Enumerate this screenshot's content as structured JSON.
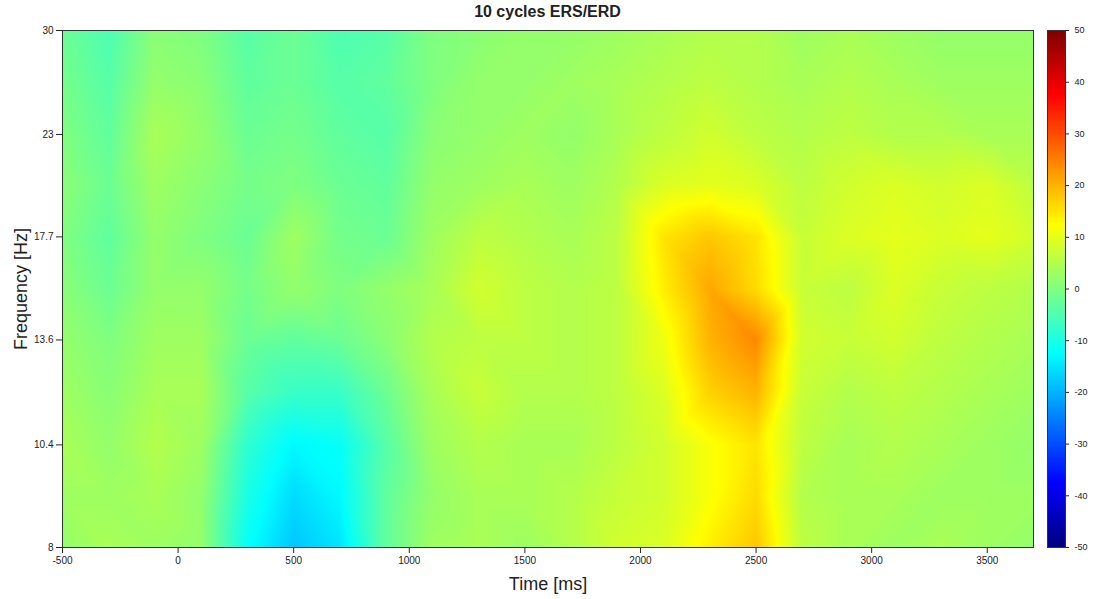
{
  "chart_data": {
    "type": "heatmap",
    "title": "10 cycles ERS/ERD",
    "x_label": "Time [ms]",
    "y_label": "Frequency [Hz]",
    "log": "y",
    "grid": false,
    "color": "jet",
    "xlim": [
      -500,
      3700
    ],
    "xticks": [
      -500,
      0,
      500,
      1000,
      1500,
      2000,
      2500,
      3000,
      3500
    ],
    "ylim": [
      8,
      30
    ],
    "yticks": [
      8,
      10.4,
      13.6,
      17.7,
      23,
      30
    ],
    "x": [
      -500,
      -300,
      -100,
      100,
      300,
      500,
      700,
      900,
      1100,
      1300,
      1500,
      1700,
      1900,
      2100,
      2300,
      2500,
      2700,
      2900,
      3100,
      3300,
      3500,
      3700
    ],
    "y": [
      8,
      9.1,
      10.4,
      11.9,
      13.6,
      15.5,
      17.7,
      20.2,
      23,
      26.3,
      30
    ],
    "values": [
      [
        2,
        4,
        3,
        2,
        -12,
        -18,
        -15,
        -3,
        3,
        4,
        3,
        5,
        8,
        9,
        14,
        18,
        6,
        4,
        3,
        4,
        3,
        2
      ],
      [
        3,
        3,
        4,
        2,
        -10,
        -16,
        -13,
        -3,
        2,
        4,
        4,
        5,
        7,
        8,
        12,
        16,
        5,
        4,
        4,
        3,
        3,
        3
      ],
      [
        4,
        2,
        5,
        3,
        -8,
        -13,
        -12,
        -4,
        3,
        5,
        4,
        4,
        6,
        8,
        12,
        15,
        6,
        4,
        5,
        4,
        3,
        2
      ],
      [
        3,
        1,
        4,
        4,
        -4,
        -7,
        -7,
        -2,
        4,
        7,
        5,
        5,
        6,
        9,
        17,
        20,
        7,
        5,
        6,
        5,
        4,
        3
      ],
      [
        2,
        0,
        3,
        3,
        -2,
        -3,
        -2,
        1,
        5,
        6,
        6,
        5,
        6,
        11,
        20,
        24,
        8,
        7,
        8,
        6,
        5,
        4
      ],
      [
        1,
        -2,
        2,
        2,
        -1,
        2,
        0,
        2,
        4,
        8,
        6,
        5,
        6,
        14,
        21,
        16,
        7,
        6,
        9,
        7,
        6,
        5
      ],
      [
        0,
        -3,
        2,
        0,
        -2,
        3,
        -1,
        -2,
        3,
        6,
        5,
        4,
        6,
        15,
        18,
        15,
        7,
        9,
        10,
        9,
        10,
        8
      ],
      [
        1,
        -2,
        3,
        1,
        -1,
        0,
        -2,
        -3,
        2,
        3,
        4,
        3,
        5,
        9,
        10,
        9,
        6,
        8,
        9,
        8,
        9,
        6
      ],
      [
        0,
        -3,
        4,
        2,
        -2,
        -1,
        -3,
        -4,
        1,
        2,
        3,
        2,
        4,
        6,
        8,
        6,
        5,
        6,
        5,
        5,
        4,
        4
      ],
      [
        -1,
        -4,
        2,
        1,
        -3,
        -2,
        -4,
        -3,
        0,
        2,
        2,
        3,
        4,
        5,
        6,
        5,
        4,
        5,
        4,
        3,
        3,
        3
      ],
      [
        -2,
        -5,
        1,
        0,
        -4,
        -2,
        -5,
        -4,
        0,
        1,
        2,
        2,
        3,
        4,
        5,
        5,
        3,
        4,
        3,
        2,
        2,
        2
      ]
    ],
    "colorbar": {
      "range": [
        -50,
        50
      ],
      "ticks": [
        -50,
        -40,
        -30,
        -20,
        -10,
        0,
        10,
        20,
        30,
        40,
        50
      ]
    }
  }
}
